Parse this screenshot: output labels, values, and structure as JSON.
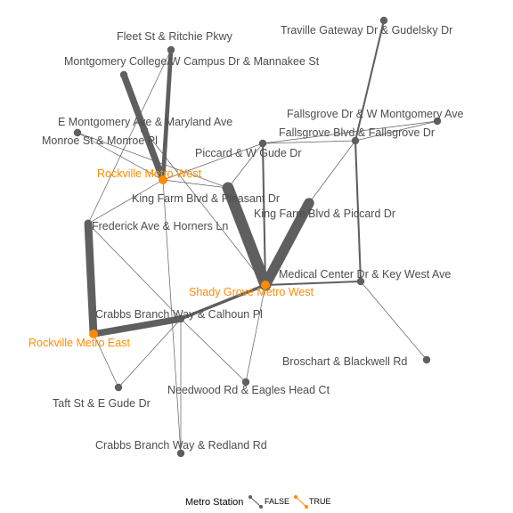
{
  "colors": {
    "false": "#5f5f5f",
    "true": "#ff8c00",
    "label_false": "#4d4d4d"
  },
  "nodes": [
    {
      "id": "fleet",
      "label": "Fleet St & Ritchie Pkwy",
      "metro": false
    },
    {
      "id": "traville",
      "label": "Traville Gateway Dr & Gudelsky Dr",
      "metro": false
    },
    {
      "id": "mc",
      "label": "Montgomery College/W Campus Dr & Mannakee St",
      "metro": false
    },
    {
      "id": "fallsgrove_wm",
      "label": "Fallsgrove Dr & W Montgomery Ave",
      "metro": false
    },
    {
      "id": "emont",
      "label": "E Montgomery Ave & Maryland Ave",
      "metro": false
    },
    {
      "id": "fallsgrove_blvd",
      "label": "Fallsgrove Blvd & Fallsgrove Dr",
      "metro": false
    },
    {
      "id": "monroe",
      "label": "Monroe St & Monroe Pl",
      "metro": false
    },
    {
      "id": "piccard_gude",
      "label": "Piccard & W Gude Dr",
      "metro": false
    },
    {
      "id": "rockville_west",
      "label": "Rockville Metro West",
      "metro": true
    },
    {
      "id": "kf_pleasant",
      "label": "King Farm Blvd & Pleasant Dr",
      "metro": false
    },
    {
      "id": "kf_piccard",
      "label": "King Farm Blvd & Piccard Dr",
      "metro": false
    },
    {
      "id": "frederick",
      "label": "Frederick Ave & Horners Ln",
      "metro": false
    },
    {
      "id": "medical",
      "label": "Medical Center Dr & Key West Ave",
      "metro": false
    },
    {
      "id": "shady_grove",
      "label": "Shady Grove Metro West",
      "metro": true
    },
    {
      "id": "crabbs_calhoun",
      "label": "Crabbs Branch Way & Calhoun Pl",
      "metro": false
    },
    {
      "id": "rockville_east",
      "label": "Rockville Metro East",
      "metro": true
    },
    {
      "id": "broschart",
      "label": "Broschart & Blackwell Rd",
      "metro": false
    },
    {
      "id": "needwood",
      "label": "Needwood Rd & Eagles Head Ct",
      "metro": false
    },
    {
      "id": "taft",
      "label": "Taft St & E Gude Dr",
      "metro": false
    },
    {
      "id": "crabbs_redland",
      "label": "Crabbs Branch Way & Redland Rd",
      "metro": false
    }
  ],
  "edges": [
    {
      "from": "mc",
      "to": "rockville_west",
      "weight": 6
    },
    {
      "from": "fleet",
      "to": "rockville_west",
      "weight": 4
    },
    {
      "from": "frederick",
      "to": "rockville_east",
      "weight": 7
    },
    {
      "from": "rockville_east",
      "to": "crabbs_calhoun",
      "weight": 6
    },
    {
      "from": "crabbs_calhoun",
      "to": "shady_grove",
      "weight": 3
    },
    {
      "from": "kf_pleasant",
      "to": "shady_grove",
      "weight": 10
    },
    {
      "from": "kf_piccard",
      "to": "shady_grove",
      "weight": 9
    },
    {
      "from": "shady_grove",
      "to": "medical",
      "weight": 2
    },
    {
      "from": "traville",
      "to": "fallsgrove_blvd",
      "weight": 2
    },
    {
      "from": "fallsgrove_blvd",
      "to": "medical",
      "weight": 2
    },
    {
      "from": "piccard_gude",
      "to": "shady_grove",
      "weight": 2
    },
    {
      "from": "rockville_west",
      "to": "crabbs_redland",
      "weight": 1
    },
    {
      "from": "fallsgrove_wm",
      "to": "fallsgrove_blvd",
      "weight": 1
    },
    {
      "from": "monroe",
      "to": "rockville_west",
      "weight": 1
    },
    {
      "from": "emont",
      "to": "rockville_west",
      "weight": 1
    },
    {
      "from": "fleet",
      "to": "frederick",
      "weight": 1
    },
    {
      "from": "frederick",
      "to": "rockville_west",
      "weight": 1
    },
    {
      "from": "rockville_west",
      "to": "kf_pleasant",
      "weight": 1
    },
    {
      "from": "piccard_gude",
      "to": "rockville_west",
      "weight": 1
    },
    {
      "from": "piccard_gude",
      "to": "kf_pleasant",
      "weight": 1
    },
    {
      "from": "piccard_gude",
      "to": "fallsgrove_blvd",
      "weight": 1
    },
    {
      "from": "kf_piccard",
      "to": "fallsgrove_blvd",
      "weight": 1
    },
    {
      "from": "fallsgrove_wm",
      "to": "piccard_gude",
      "weight": 1
    },
    {
      "from": "medical",
      "to": "broschart",
      "weight": 1
    },
    {
      "from": "crabbs_calhoun",
      "to": "needwood",
      "weight": 1
    },
    {
      "from": "shady_grove",
      "to": "needwood",
      "weight": 1
    },
    {
      "from": "crabbs_calhoun",
      "to": "taft",
      "weight": 1
    },
    {
      "from": "rockville_east",
      "to": "taft",
      "weight": 1
    },
    {
      "from": "crabbs_calhoun",
      "to": "crabbs_redland",
      "weight": 1
    },
    {
      "from": "frederick",
      "to": "crabbs_calhoun",
      "weight": 1
    },
    {
      "from": "monroe",
      "to": "kf_pleasant",
      "weight": 1
    },
    {
      "from": "emont",
      "to": "shady_grove",
      "weight": 1
    }
  ],
  "legend": {
    "title": "Metro Station",
    "false_label": "FALSE",
    "true_label": "TRUE"
  }
}
